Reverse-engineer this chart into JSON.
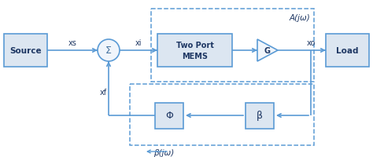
{
  "bg_color": "#ffffff",
  "line_color": "#5b9bd5",
  "box_fill": "#dce6f1",
  "box_edge": "#5b9bd5",
  "dashed_box_color": "#5b9bd5",
  "text_color": "#1f3864",
  "source_label": "Source",
  "load_label": "Load",
  "mems_label": "Two Port\nMEMS",
  "g_label": "G",
  "phi_label": "Φ",
  "beta_label": "β",
  "Ajw_label": "A(jω)",
  "Bjw_label": "β(jω)",
  "xs_label": "xs",
  "xi_label": "xi",
  "xo_label": "xo",
  "xf_label": "xf",
  "sigma_label": "Σ",
  "figsize": [
    4.74,
    2.01
  ],
  "dpi": 100
}
